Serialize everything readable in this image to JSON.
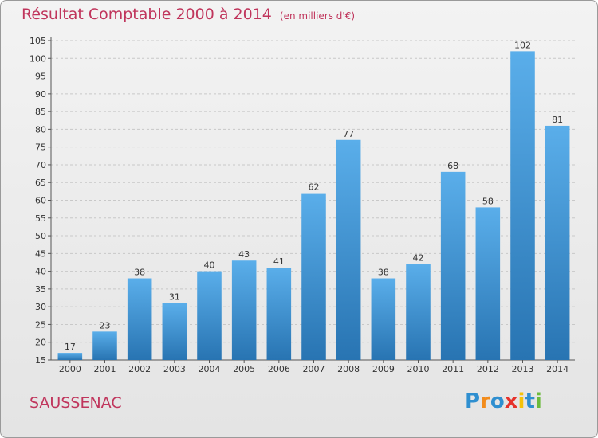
{
  "title": "Résultat Comptable 2000 à 2014",
  "unit": "(en milliers d'€)",
  "commune": "SAUSSENAC",
  "logo_text": "Proxiti",
  "colors": {
    "title": "#c0355c",
    "bar_light": "#5aaeea",
    "bar_dark": "#2874b2",
    "grid": "#c8c8c8",
    "logo": [
      "#2f8fd0",
      "#f28c1c",
      "#2f8fd0",
      "#e6322b",
      "#f5c20a",
      "#2f8fd0",
      "#6cbb3c"
    ]
  },
  "chart_data": {
    "type": "bar",
    "categories": [
      "2000",
      "2001",
      "2002",
      "2003",
      "2004",
      "2005",
      "2006",
      "2007",
      "2008",
      "2009",
      "2010",
      "2011",
      "2012",
      "2013",
      "2014"
    ],
    "values": [
      17,
      23,
      38,
      31,
      40,
      43,
      41,
      62,
      77,
      38,
      42,
      68,
      58,
      102,
      81
    ],
    "ylim": [
      15,
      105
    ],
    "yticks": [
      15,
      20,
      25,
      30,
      35,
      40,
      45,
      50,
      55,
      60,
      65,
      70,
      75,
      80,
      85,
      90,
      95,
      100,
      105
    ],
    "grid": true,
    "data_labels": true
  }
}
